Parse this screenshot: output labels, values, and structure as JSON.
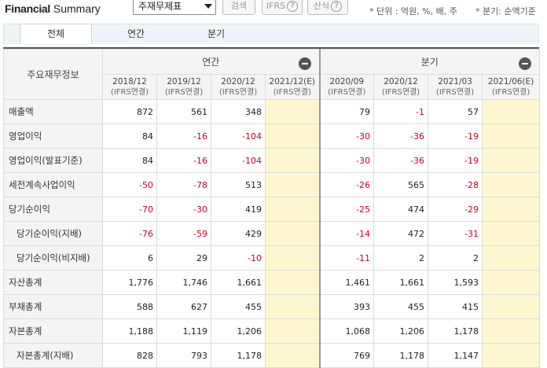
{
  "header": {
    "title_bold": "Financial",
    "title_rest": "Summary",
    "select_value": "주재무제표",
    "search_button": "검색",
    "ifrs_button": "IFRS",
    "formula_button": "산식",
    "help_glyph": "?",
    "unit_note": "* 단위 : 억원, %, 배, 주",
    "period_note": "* 분기: 순액기준"
  },
  "tabs": [
    "전체",
    "연간",
    "분기"
  ],
  "table": {
    "row_header": "주요재무정보",
    "annual_label": "연간",
    "quarter_label": "분기",
    "periods": [
      {
        "date": "2018/12",
        "basis": "(IFRS연결)"
      },
      {
        "date": "2019/12",
        "basis": "(IFRS연결)"
      },
      {
        "date": "2020/12",
        "basis": "(IFRS연결)"
      },
      {
        "date": "2021/12(E)",
        "basis": "(IFRS연결)"
      },
      {
        "date": "2020/09",
        "basis": "(IFRS연결)"
      },
      {
        "date": "2020/12",
        "basis": "(IFRS연결)"
      },
      {
        "date": "2021/03",
        "basis": "(IFRS연결)"
      },
      {
        "date": "2021/06(E)",
        "basis": "(IFRS연결)"
      }
    ],
    "rows": [
      {
        "label": "매출액",
        "indent": false,
        "values": [
          "872",
          "561",
          "348",
          "",
          "79",
          "-1",
          "57",
          ""
        ]
      },
      {
        "label": "영업이익",
        "indent": false,
        "values": [
          "84",
          "-16",
          "-104",
          "",
          "-30",
          "-36",
          "-19",
          ""
        ]
      },
      {
        "label": "영업이익(발표기준)",
        "indent": false,
        "values": [
          "84",
          "-16",
          "-104",
          "",
          "-30",
          "-36",
          "-19",
          ""
        ]
      },
      {
        "label": "세전계속사업이익",
        "indent": false,
        "values": [
          "-50",
          "-78",
          "513",
          "",
          "-26",
          "565",
          "-28",
          ""
        ]
      },
      {
        "label": "당기순이익",
        "indent": false,
        "values": [
          "-70",
          "-30",
          "419",
          "",
          "-25",
          "474",
          "-29",
          ""
        ]
      },
      {
        "label": "당기순이익(지배)",
        "indent": true,
        "values": [
          "-76",
          "-59",
          "429",
          "",
          "-14",
          "472",
          "-31",
          ""
        ]
      },
      {
        "label": "당기순이익(비지배)",
        "indent": true,
        "values": [
          "6",
          "29",
          "-10",
          "",
          "-11",
          "2",
          "2",
          ""
        ]
      },
      {
        "label": "자산총계",
        "indent": false,
        "values": [
          "1,776",
          "1,746",
          "1,661",
          "",
          "1,461",
          "1,661",
          "1,593",
          ""
        ]
      },
      {
        "label": "부채총계",
        "indent": false,
        "values": [
          "588",
          "627",
          "455",
          "",
          "393",
          "455",
          "415",
          ""
        ]
      },
      {
        "label": "자본총계",
        "indent": false,
        "values": [
          "1,188",
          "1,119",
          "1,206",
          "",
          "1,068",
          "1,206",
          "1,178",
          ""
        ]
      },
      {
        "label": "자본총계(지배)",
        "indent": true,
        "values": [
          "828",
          "793",
          "1,178",
          "",
          "769",
          "1,178",
          "1,147",
          ""
        ]
      }
    ]
  },
  "colors": {
    "negative": "#d0021b",
    "estimate_bg": "#fdf7d1",
    "header_bg": "#f4f4f4"
  }
}
